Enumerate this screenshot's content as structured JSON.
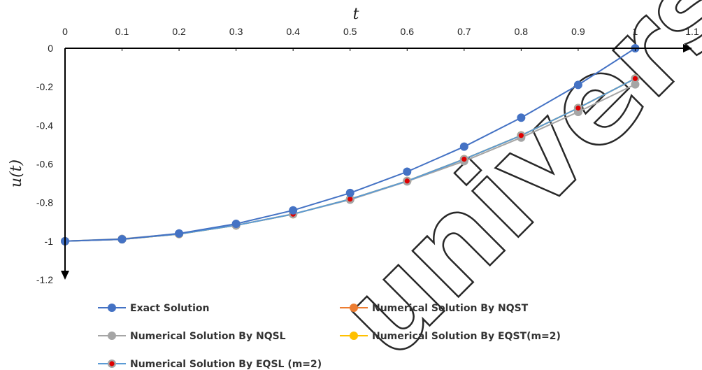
{
  "chart_data": {
    "type": "line",
    "title": "",
    "xlabel": "t",
    "ylabel": "u(t)",
    "x": [
      0,
      0.1,
      0.2,
      0.3,
      0.4,
      0.5,
      0.6,
      0.7,
      0.8,
      0.9,
      1
    ],
    "xlim": [
      0,
      1.1
    ],
    "ylim": [
      -1.2,
      0
    ],
    "x_ticks": [
      "0",
      "0.1",
      "0.2",
      "0.3",
      "0.4",
      "0.5",
      "0.6",
      "0.7",
      "0.8",
      "0.9",
      "1",
      "1.1"
    ],
    "y_ticks": [
      "0",
      "-0.2",
      "-0.4",
      "-0.6",
      "-0.8",
      "-1",
      "-1.2"
    ],
    "x_tick_values": [
      0,
      0.1,
      0.2,
      0.3,
      0.4,
      0.5,
      0.6,
      0.7,
      0.8,
      0.9,
      1,
      1.1
    ],
    "y_tick_values": [
      0,
      -0.2,
      -0.4,
      -0.6,
      -0.8,
      -1,
      -1.2
    ],
    "x_axis_position": "top",
    "grid": false,
    "legend_position": "bottom",
    "series": [
      {
        "name": "Exact Solution",
        "color": "#4472C4",
        "marker_color": "#4472C4",
        "values": [
          -1,
          -0.99,
          -0.96,
          -0.91,
          -0.84,
          -0.75,
          -0.64,
          -0.51,
          -0.36,
          -0.19,
          0
        ]
      },
      {
        "name": "Numerical Solution By NQST",
        "color": "#ED7D31",
        "marker_color": "#ED7D31",
        "values": [
          -1,
          -0.99,
          -0.963,
          -0.918,
          -0.86,
          -0.782,
          -0.688,
          -0.575,
          -0.452,
          -0.31,
          -0.157
        ]
      },
      {
        "name": "Numerical Solution By NQSL",
        "color": "#A5A5A5",
        "marker_color": "#A5A5A5",
        "values": [
          -1,
          -0.988,
          -0.961,
          -0.918,
          -0.859,
          -0.785,
          -0.69,
          -0.585,
          -0.463,
          -0.33,
          -0.187
        ]
      },
      {
        "name": "Numerical Solution By EQST(m=2)",
        "color": "#FFC000",
        "marker_color": "#FFC000",
        "values": [
          -1,
          -0.99,
          -0.963,
          -0.918,
          -0.86,
          -0.782,
          -0.688,
          -0.575,
          -0.452,
          -0.31,
          -0.157
        ]
      },
      {
        "name": "Numerical Solution By EQSL (m=2)",
        "color": "#5B9BD5",
        "marker_color": "#E00000",
        "values": [
          -1,
          -0.99,
          -0.963,
          -0.918,
          -0.86,
          -0.782,
          -0.688,
          -0.575,
          -0.452,
          -0.31,
          -0.157
        ]
      }
    ]
  },
  "watermark_text": "univers"
}
